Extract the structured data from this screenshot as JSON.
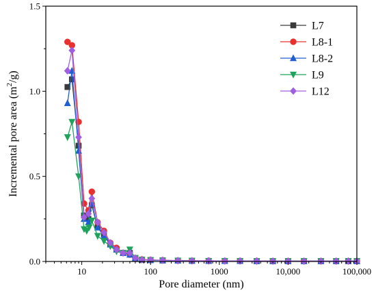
{
  "chart_data": {
    "type": "line",
    "xscale": "log",
    "xlim": [
      3,
      100000
    ],
    "ylim": [
      0,
      1.5
    ],
    "xlabel": "Pore diameter (nm)",
    "ylabel_prefix": "Incremental pore area (m",
    "ylabel_sup": "2",
    "ylabel_suffix": "/g)",
    "x_ticks": [
      10,
      100,
      1000,
      10000,
      100000
    ],
    "x_tick_labels": [
      "10",
      "100",
      "1000",
      "10,000",
      "100,000"
    ],
    "y_ticks": [
      0,
      0.5,
      1.0,
      1.5
    ],
    "y_tick_labels": [
      "0.0",
      "0.5",
      "1.0",
      "1.5"
    ],
    "grid": false,
    "legend_position": "top-right",
    "series": [
      {
        "name": "L7",
        "color": "#3a3a3a",
        "marker": "square",
        "x": [
          6.2,
          7.2,
          9,
          10.8,
          12.5,
          14,
          17,
          21,
          26,
          32,
          40,
          50,
          60,
          75,
          100,
          150,
          250,
          400,
          700,
          1200,
          2000,
          3500,
          6000,
          10000,
          17000,
          30000,
          50000,
          75000,
          100000
        ],
        "y": [
          1.025,
          1.07,
          0.68,
          0.27,
          0.25,
          0.33,
          0.2,
          0.16,
          0.1,
          0.07,
          0.05,
          0.05,
          0.02,
          0.01,
          0.008,
          0.006,
          0.005,
          0.004,
          0.003,
          0.003,
          0.003,
          0.002,
          0.002,
          0.002,
          0.002,
          0.002,
          0.002,
          0.002,
          0.002
        ]
      },
      {
        "name": "L8-1",
        "color": "#e8312f",
        "marker": "circle",
        "x": [
          6.2,
          7.2,
          9,
          10.8,
          12.5,
          14,
          17,
          21,
          26,
          32,
          40,
          50,
          60,
          75,
          100,
          150,
          250,
          400,
          700,
          1200,
          2000,
          3500,
          6000,
          10000,
          17000,
          30000,
          50000,
          75000,
          100000
        ],
        "y": [
          1.29,
          1.27,
          0.82,
          0.34,
          0.3,
          0.41,
          0.23,
          0.18,
          0.11,
          0.08,
          0.05,
          0.04,
          0.02,
          0.012,
          0.009,
          0.007,
          0.005,
          0.004,
          0.004,
          0.003,
          0.003,
          0.003,
          0.002,
          0.002,
          0.002,
          0.002,
          0.002,
          0.002,
          0.002
        ]
      },
      {
        "name": "L8-2",
        "color": "#1f5fd1",
        "marker": "triangle-up",
        "x": [
          6.2,
          7.2,
          9,
          10.8,
          12.5,
          14,
          17,
          21,
          26,
          32,
          40,
          50,
          60,
          75,
          100,
          150,
          250,
          400,
          700,
          1200,
          2000,
          3500,
          6000,
          10000,
          17000,
          30000,
          50000,
          75000,
          100000
        ],
        "y": [
          0.93,
          1.12,
          0.65,
          0.25,
          0.23,
          0.34,
          0.2,
          0.15,
          0.1,
          0.07,
          0.05,
          0.04,
          0.02,
          0.01,
          0.008,
          0.006,
          0.005,
          0.004,
          0.003,
          0.003,
          0.003,
          0.002,
          0.002,
          0.002,
          0.002,
          0.002,
          0.002,
          0.002,
          0.002
        ]
      },
      {
        "name": "L9",
        "color": "#1fa35a",
        "marker": "triangle-down",
        "x": [
          6.2,
          7.2,
          9,
          10.8,
          11.8,
          12.8,
          14,
          17,
          21,
          26,
          32,
          40,
          50,
          60,
          75,
          100,
          150,
          250,
          400,
          700,
          1200,
          2000,
          3500,
          6000,
          10000,
          17000,
          30000,
          50000,
          75000,
          100000
        ],
        "y": [
          0.73,
          0.82,
          0.5,
          0.19,
          0.18,
          0.2,
          0.24,
          0.15,
          0.12,
          0.09,
          0.06,
          0.05,
          0.07,
          0.02,
          0.01,
          0.008,
          0.006,
          0.005,
          0.004,
          0.003,
          0.003,
          0.003,
          0.002,
          0.002,
          0.002,
          0.002,
          0.002,
          0.002,
          0.002,
          0.002
        ]
      },
      {
        "name": "L12",
        "color": "#a05fe0",
        "marker": "diamond",
        "x": [
          6.2,
          7.2,
          9,
          10.8,
          12.5,
          14,
          17,
          21,
          26,
          32,
          40,
          50,
          60,
          75,
          100,
          150,
          250,
          400,
          700,
          1200,
          2000,
          3500,
          6000,
          10000,
          17000,
          30000,
          50000,
          75000,
          100000
        ],
        "y": [
          1.12,
          1.24,
          0.73,
          0.26,
          0.28,
          0.37,
          0.23,
          0.17,
          0.11,
          0.07,
          0.05,
          0.05,
          0.02,
          0.01,
          0.009,
          0.007,
          0.005,
          0.004,
          0.004,
          0.003,
          0.003,
          0.003,
          0.002,
          0.002,
          0.002,
          0.002,
          0.002,
          0.002,
          0.002
        ]
      }
    ]
  }
}
